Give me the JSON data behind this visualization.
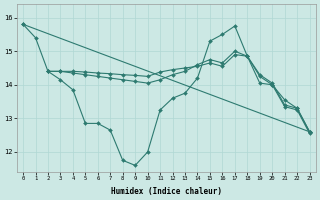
{
  "xlabel": "Humidex (Indice chaleur)",
  "ylabel": "",
  "background_color": "#cce8e4",
  "line_color": "#2d7a70",
  "grid_color": "#b0d8d4",
  "xlim": [
    -0.5,
    23.5
  ],
  "ylim": [
    11.4,
    16.4
  ],
  "yticks": [
    12,
    13,
    14,
    15,
    16
  ],
  "xticks": [
    0,
    1,
    2,
    3,
    4,
    5,
    6,
    7,
    8,
    9,
    10,
    11,
    12,
    13,
    14,
    15,
    16,
    17,
    18,
    19,
    20,
    21,
    22,
    23
  ],
  "series": [
    {
      "x": [
        0,
        1,
        2,
        3,
        4,
        5,
        6,
        7,
        8,
        9,
        10,
        11,
        12,
        13,
        14,
        15,
        16,
        17,
        18,
        19,
        20,
        21,
        22,
        23
      ],
      "y": [
        15.8,
        15.4,
        14.4,
        14.15,
        13.85,
        12.85,
        12.85,
        12.65,
        11.75,
        11.6,
        12.0,
        13.25,
        13.6,
        13.75,
        14.2,
        15.3,
        15.5,
        15.75,
        14.85,
        14.05,
        14.0,
        13.35,
        13.25,
        12.55
      ]
    },
    {
      "x": [
        2,
        3,
        4,
        5,
        6,
        7,
        8,
        9,
        10,
        11,
        12,
        13,
        14,
        15,
        16,
        17,
        18,
        19,
        20,
        21,
        22,
        23
      ],
      "y": [
        14.4,
        14.4,
        14.4,
        14.38,
        14.35,
        14.33,
        14.3,
        14.28,
        14.25,
        14.38,
        14.45,
        14.5,
        14.55,
        14.65,
        14.55,
        14.9,
        14.85,
        14.25,
        14.0,
        13.55,
        13.3,
        12.6
      ]
    },
    {
      "x": [
        2,
        3,
        4,
        5,
        6,
        7,
        8,
        9,
        10,
        11,
        12,
        13,
        14,
        15,
        16,
        17,
        18,
        19,
        20,
        21,
        22,
        23
      ],
      "y": [
        14.4,
        14.4,
        14.35,
        14.3,
        14.25,
        14.2,
        14.15,
        14.1,
        14.05,
        14.15,
        14.3,
        14.4,
        14.6,
        14.75,
        14.65,
        15.0,
        14.85,
        14.3,
        14.05,
        13.4,
        13.3,
        12.6
      ]
    },
    {
      "x": [
        0,
        23
      ],
      "y": [
        15.8,
        12.6
      ]
    }
  ]
}
